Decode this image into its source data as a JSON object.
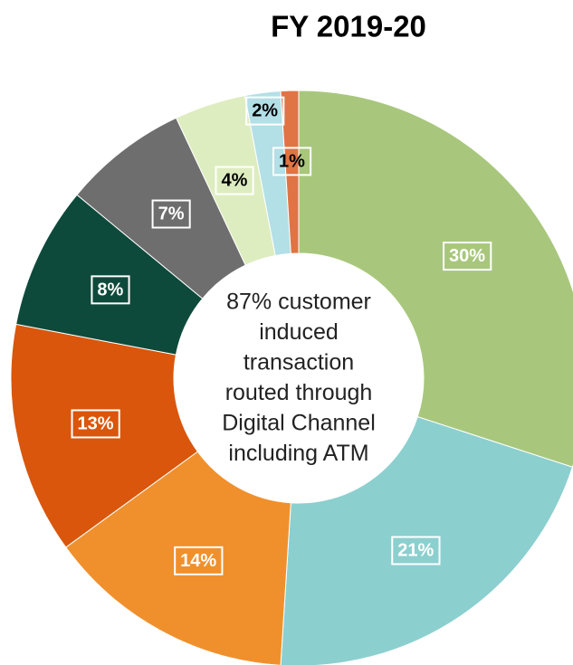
{
  "chart_data": {
    "type": "donut",
    "title": "FY 2019-20",
    "values": [
      30,
      21,
      14,
      13,
      8,
      7,
      4,
      2,
      1
    ],
    "value_labels": [
      "30%",
      "21%",
      "14%",
      "13%",
      "8%",
      "7%",
      "4%",
      "2%",
      "1%"
    ],
    "colors": [
      "#a8c77c",
      "#8ccfcf",
      "#f0902c",
      "#d9560c",
      "#0e4a3b",
      "#6e6e6e",
      "#deedc0",
      "#b3dfe6",
      "#e07444"
    ],
    "label_colors": [
      "#ffffff",
      "#ffffff",
      "#ffffff",
      "#ffffff",
      "#ffffff",
      "#ffffff",
      "#000000",
      "#000000",
      "#000000"
    ],
    "center_text": [
      "87% customer",
      "induced",
      "transaction",
      "routed through",
      "Digital Channel",
      "including ATM"
    ]
  }
}
